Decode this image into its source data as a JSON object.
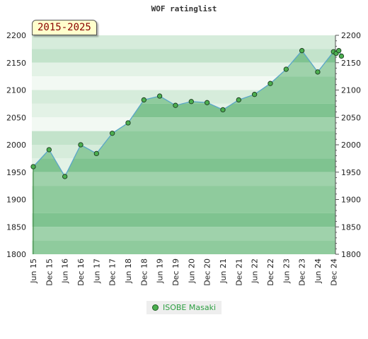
{
  "chart_data": {
    "type": "area",
    "title": "WOF ratinglist",
    "period_label": "2015-2025",
    "ylim": [
      1800,
      2200
    ],
    "y_ticks": [
      1800,
      1850,
      1900,
      1950,
      2000,
      2050,
      2100,
      2150,
      2200
    ],
    "y_tick_labels": [
      "1800",
      "1850",
      "1900",
      "1950",
      "2000",
      "2050",
      "2100",
      "2150",
      "2200"
    ],
    "x_tick_labels": [
      "Jun 15",
      "Dec 15",
      "Jun 16",
      "Dec 16",
      "Jun 17",
      "Dec 17",
      "Jun 18",
      "Dec 18",
      "Jun 19",
      "Dec 19",
      "Jun 20",
      "Dec 20",
      "Jun 21",
      "Dec 21",
      "Jun 22",
      "Dec 22",
      "Jun 23",
      "Dec 23",
      "Jun 24",
      "Dec 24"
    ],
    "series": [
      {
        "name": "ISOBE Masaki",
        "color": "#4caf50",
        "points": [
          {
            "x": "Jun 15",
            "y": 1960
          },
          {
            "x": "Dec 15",
            "y": 1991
          },
          {
            "x": "Jun 16",
            "y": 1942
          },
          {
            "x": "Dec 16",
            "y": 2000
          },
          {
            "x": "Jun 17",
            "y": 1984
          },
          {
            "x": "Dec 17",
            "y": 2021
          },
          {
            "x": "Jun 18",
            "y": 2040
          },
          {
            "x": "Dec 18",
            "y": 2082
          },
          {
            "x": "Jun 19",
            "y": 2089
          },
          {
            "x": "Dec 19",
            "y": 2072
          },
          {
            "x": "Jun 20",
            "y": 2079
          },
          {
            "x": "Dec 20",
            "y": 2077
          },
          {
            "x": "Jun 21",
            "y": 2064
          },
          {
            "x": "Dec 21",
            "y": 2082
          },
          {
            "x": "Jun 22",
            "y": 2092
          },
          {
            "x": "Dec 22",
            "y": 2112
          },
          {
            "x": "Jun 23",
            "y": 2138
          },
          {
            "x": "Dec 23",
            "y": 2172
          },
          {
            "x": "Jun 24",
            "y": 2133
          },
          {
            "x": "Dec 24",
            "y": 2170
          },
          {
            "x": "Jan 25",
            "y": 2167
          },
          {
            "x": "Feb 25",
            "y": 2172
          },
          {
            "x": "Mar 25",
            "y": 2162
          }
        ]
      }
    ],
    "grid": true,
    "legend_position": "bottom-center"
  }
}
